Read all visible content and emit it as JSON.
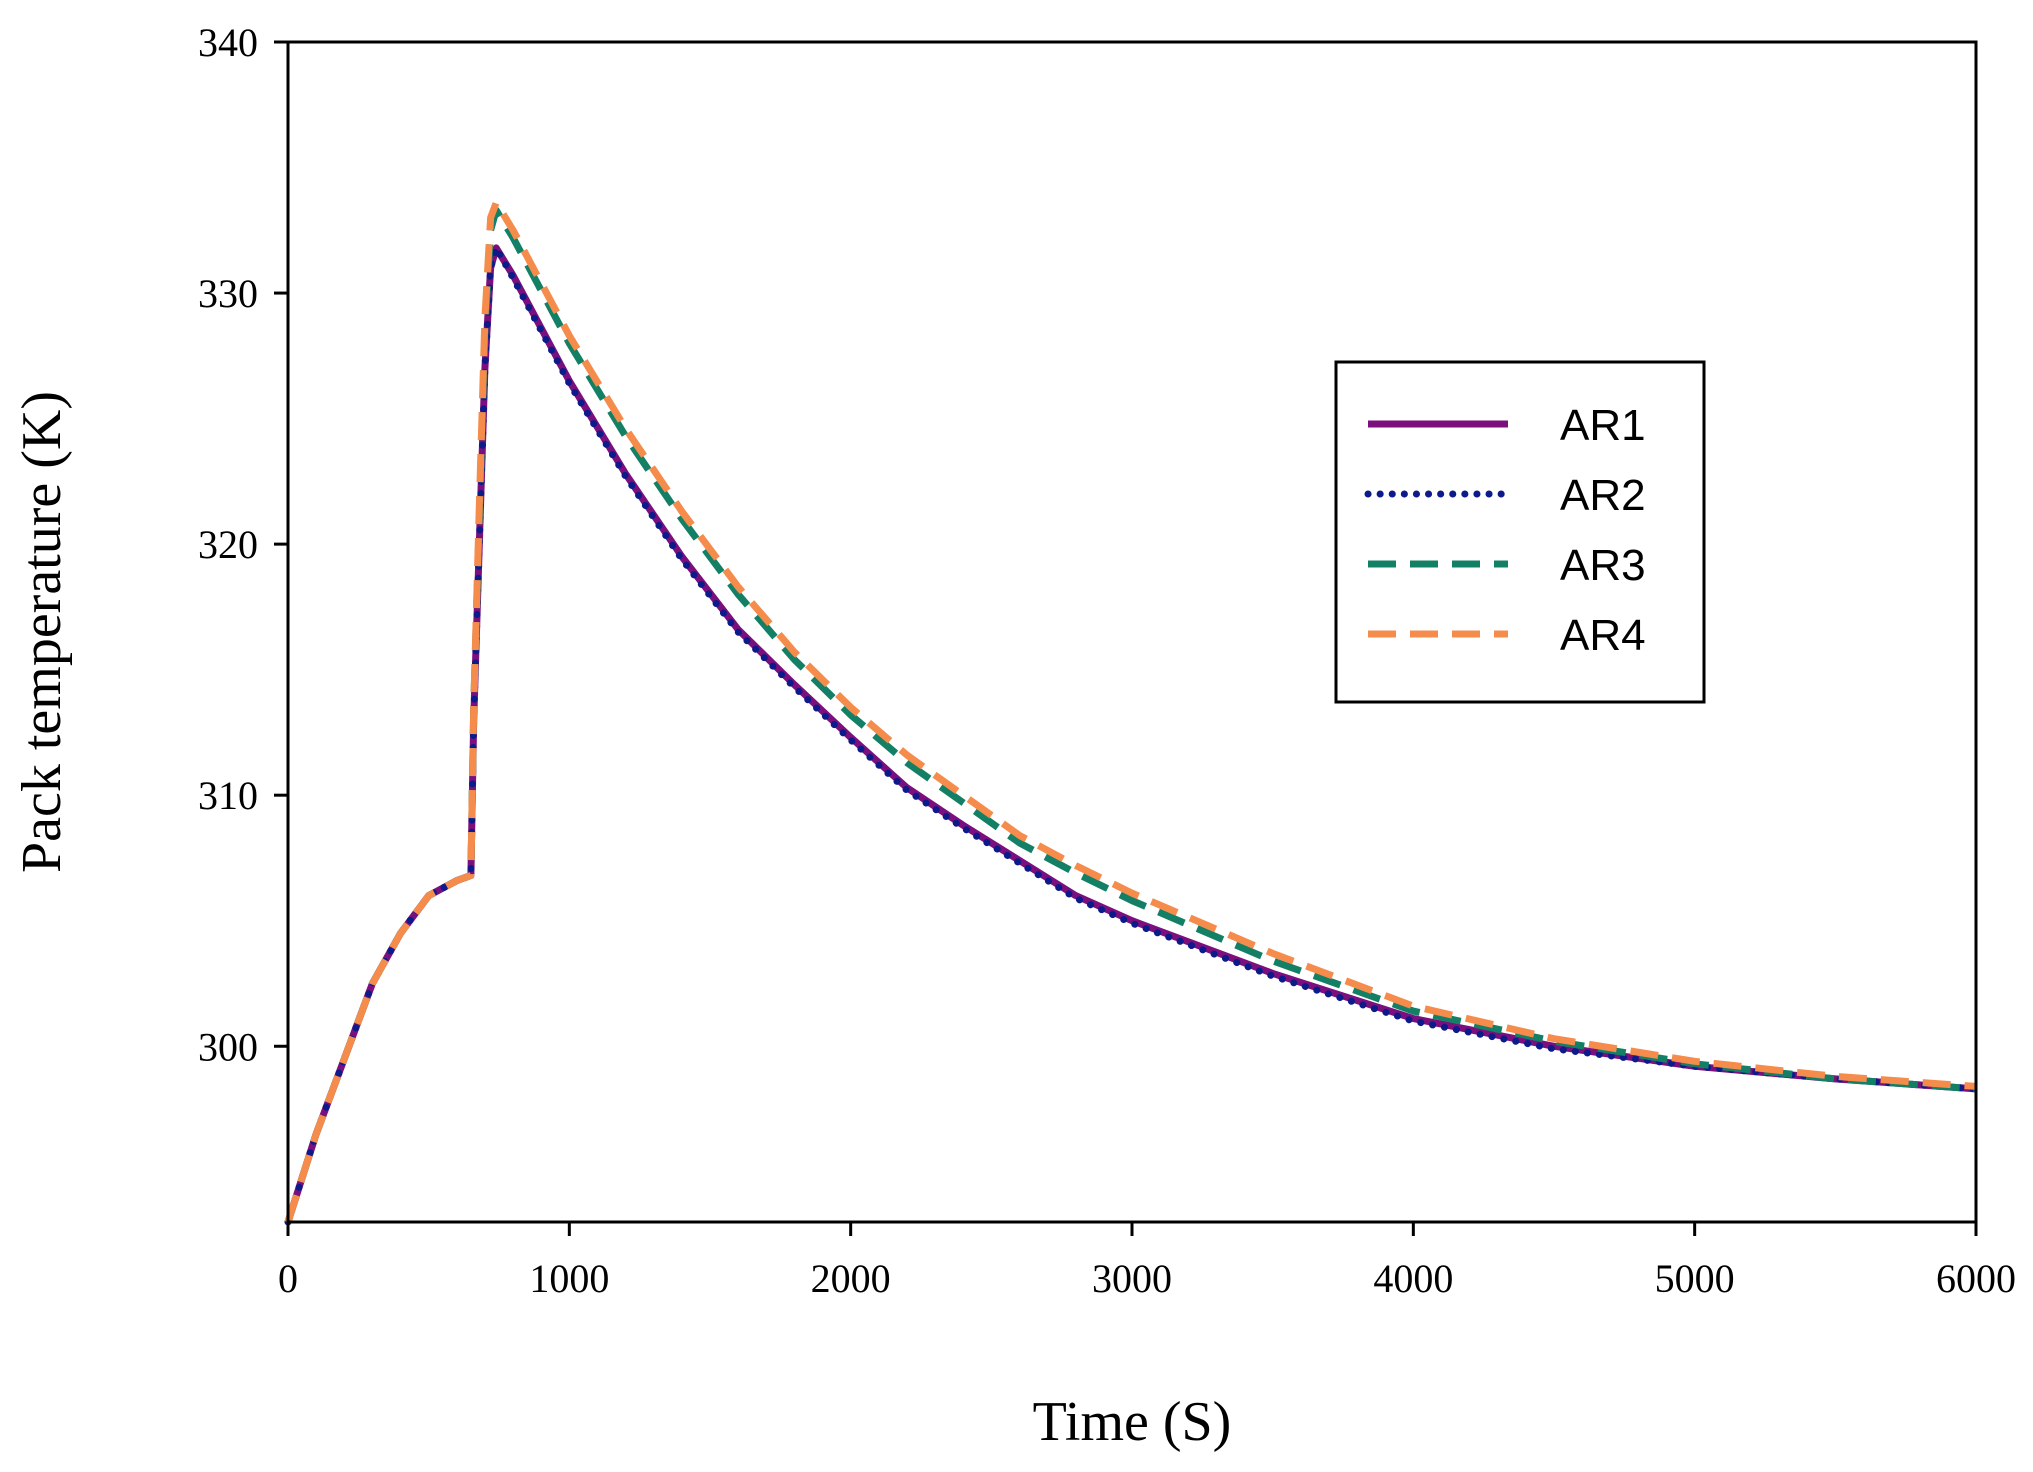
{
  "chart_data": {
    "type": "line",
    "title": "",
    "xlabel": "Time (S)",
    "ylabel": "Pack temperature (K)",
    "xlim": [
      0,
      6000
    ],
    "ylim": [
      293,
      340
    ],
    "xticks": [
      "0",
      "1000",
      "2000",
      "3000",
      "4000",
      "5000",
      "6000"
    ],
    "yticks": [
      "300",
      "310",
      "320",
      "330",
      "340"
    ],
    "grid": false,
    "legend_position": "right",
    "series": [
      {
        "name": "AR1",
        "color": "#7b0f7e",
        "style": "solid",
        "x": [
          0,
          100,
          200,
          300,
          400,
          500,
          600,
          650,
          660,
          680,
          700,
          720,
          740,
          800,
          1000,
          1200,
          1400,
          1600,
          1800,
          2000,
          2200,
          2400,
          2600,
          2800,
          3000,
          3500,
          4000,
          4500,
          5000,
          5500,
          6000
        ],
        "y": [
          293,
          296.5,
          299.5,
          302.5,
          304.5,
          306.0,
          306.6,
          306.8,
          313.0,
          320.0,
          327.0,
          331.0,
          331.8,
          330.7,
          326.5,
          322.8,
          319.5,
          316.6,
          314.4,
          312.3,
          310.3,
          308.8,
          307.4,
          306.0,
          305.0,
          302.9,
          301.1,
          300.0,
          299.2,
          298.7,
          298.3
        ]
      },
      {
        "name": "AR2",
        "color": "#0d1a8a",
        "style": "dotted",
        "x": [
          0,
          100,
          200,
          300,
          400,
          500,
          600,
          650,
          660,
          680,
          700,
          720,
          740,
          800,
          1000,
          1200,
          1400,
          1600,
          1800,
          2000,
          2200,
          2400,
          2600,
          2800,
          3000,
          3500,
          4000,
          4500,
          5000,
          5500,
          6000
        ],
        "y": [
          293,
          296.5,
          299.5,
          302.5,
          304.5,
          306.0,
          306.6,
          306.8,
          313.0,
          320.0,
          327.0,
          331.0,
          331.8,
          330.6,
          326.4,
          322.7,
          319.4,
          316.5,
          314.3,
          312.2,
          310.2,
          308.7,
          307.3,
          305.9,
          304.9,
          302.8,
          301.0,
          299.9,
          299.2,
          298.7,
          298.3
        ]
      },
      {
        "name": "AR3",
        "color": "#138066",
        "style": "dashed",
        "x": [
          0,
          100,
          200,
          300,
          400,
          500,
          600,
          650,
          660,
          680,
          700,
          720,
          740,
          800,
          1000,
          1200,
          1400,
          1600,
          1800,
          2000,
          2200,
          2400,
          2600,
          2800,
          3000,
          3500,
          4000,
          4500,
          5000,
          5500,
          6000
        ],
        "y": [
          293,
          296.5,
          299.5,
          302.5,
          304.5,
          306.0,
          306.6,
          306.8,
          313.5,
          321.0,
          328.5,
          332.5,
          333.3,
          332.2,
          328.0,
          324.3,
          321.0,
          318.0,
          315.4,
          313.2,
          311.3,
          309.7,
          308.1,
          306.9,
          305.8,
          303.4,
          301.4,
          300.2,
          299.3,
          298.7,
          298.3
        ]
      },
      {
        "name": "AR4",
        "color": "#f58c4c",
        "style": "dashed",
        "x": [
          0,
          100,
          200,
          300,
          400,
          500,
          600,
          650,
          660,
          680,
          700,
          720,
          740,
          800,
          1000,
          1200,
          1400,
          1600,
          1800,
          2000,
          2200,
          2400,
          2600,
          2800,
          3000,
          3500,
          4000,
          4500,
          5000,
          5500,
          6000
        ],
        "y": [
          293,
          296.5,
          299.5,
          302.5,
          304.5,
          306.0,
          306.6,
          306.8,
          313.5,
          321.5,
          329.0,
          333.0,
          333.6,
          332.5,
          328.3,
          324.6,
          321.3,
          318.3,
          315.7,
          313.5,
          311.6,
          310.0,
          308.4,
          307.2,
          306.1,
          303.7,
          301.6,
          300.3,
          299.4,
          298.8,
          298.4
        ]
      }
    ]
  }
}
